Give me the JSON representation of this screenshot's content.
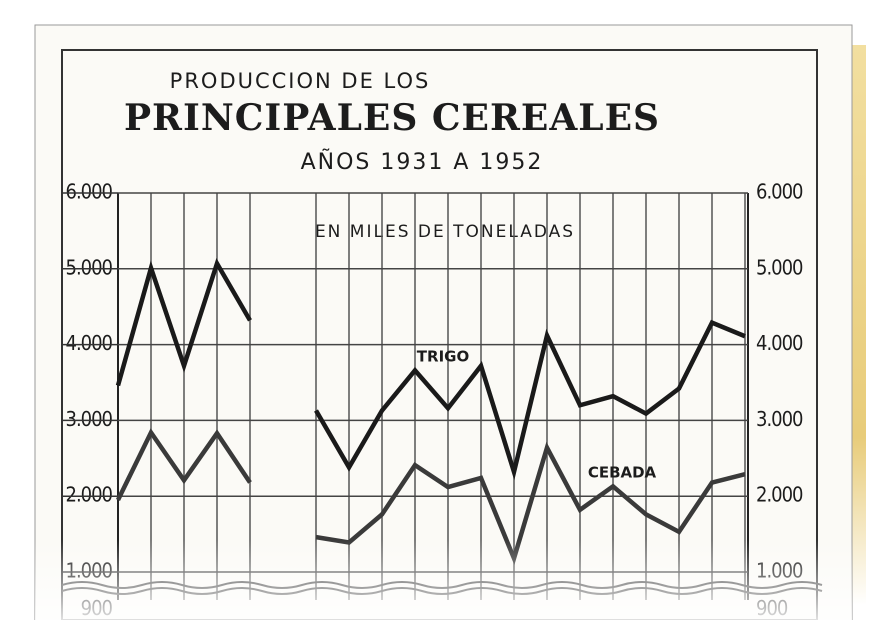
{
  "chart_data": {
    "type": "line",
    "pretitle": "PRODUCCION DE LOS",
    "title": "PRINCIPALES CEREALES",
    "subtitle": "AÑOS 1931 A 1952",
    "annotation": "EN MILES DE TONELADAS",
    "ylim": [
      900,
      6000
    ],
    "yticks": [
      {
        "value": 900,
        "label": "900"
      },
      {
        "value": 1000,
        "label": "1.000"
      },
      {
        "value": 2000,
        "label": "2.000"
      },
      {
        "value": 3000,
        "label": "3.000"
      },
      {
        "value": 4000,
        "label": "4.000"
      },
      {
        "value": 5000,
        "label": "5.000"
      },
      {
        "value": 6000,
        "label": "6.000"
      }
    ],
    "grid": true,
    "series": [
      {
        "name": "TRIGO",
        "color": "#1a1a1a",
        "values": [
          3460,
          5010,
          3720,
          5070,
          4320,
          null,
          3130,
          2380,
          3130,
          3660,
          3160,
          3720,
          2320,
          4120,
          3200,
          3320,
          3090,
          3420,
          4290,
          4110
        ]
      },
      {
        "name": "CEBADA",
        "color": "#3a3a3a",
        "values": [
          1950,
          2840,
          2210,
          2830,
          2180,
          null,
          1460,
          1390,
          1760,
          2410,
          2120,
          2240,
          1180,
          2640,
          1820,
          2130,
          1760,
          1530,
          2180,
          2290
        ]
      }
    ]
  }
}
